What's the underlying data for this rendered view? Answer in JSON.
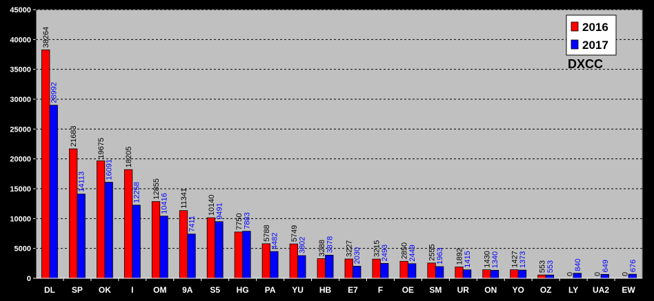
{
  "chart_data": {
    "type": "bar",
    "categories": [
      "DL",
      "SP",
      "OK",
      "I",
      "OM",
      "9A",
      "S5",
      "HG",
      "PA",
      "YU",
      "HB",
      "E7",
      "F",
      "OE",
      "SM",
      "UR",
      "ON",
      "YO",
      "OZ",
      "LY",
      "UA2",
      "EW"
    ],
    "series": [
      {
        "name": "2016",
        "color": "#ff0000",
        "label_color": "#000000",
        "values": [
          38264,
          21683,
          19675,
          18205,
          12855,
          11341,
          10140,
          7750,
          5788,
          5749,
          3288,
          3227,
          3215,
          2850,
          2555,
          1892,
          1430,
          1427,
          553,
          0,
          0,
          0
        ]
      },
      {
        "name": "2017",
        "color": "#0000ff",
        "label_color": "#0000ff",
        "values": [
          28992,
          14113,
          16091,
          12258,
          10416,
          7411,
          9491,
          7883,
          4482,
          3802,
          3878,
          2030,
          2493,
          2449,
          1963,
          1415,
          1340,
          1373,
          553,
          840,
          649,
          676
        ]
      }
    ],
    "ylim": [
      0,
      45000
    ],
    "yticks": [
      0,
      5000,
      10000,
      15000,
      20000,
      25000,
      30000,
      35000,
      40000,
      45000
    ],
    "grid": true,
    "legend_position": "top-right",
    "annotation": "DXCC",
    "colors": {
      "page": "#000000",
      "plot_area": "#c0c0c0",
      "grid": "#000000"
    }
  }
}
